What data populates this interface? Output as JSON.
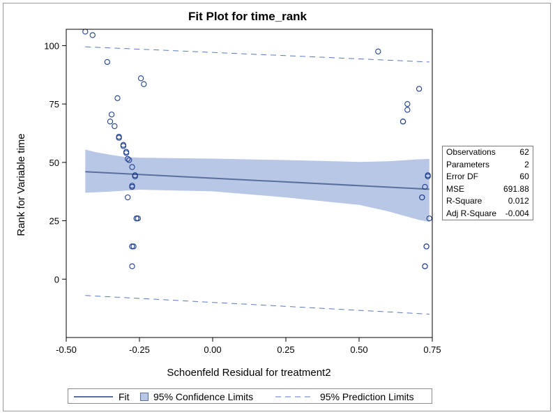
{
  "chart_data": {
    "type": "scatter",
    "title": "Fit Plot for time_rank",
    "xlabel": "Schoenfeld Residual for treatment2",
    "ylabel": "Rank for Variable time",
    "xlim": [
      -0.5,
      0.75
    ],
    "ylim": [
      -25,
      107
    ],
    "xticks": [
      -0.5,
      -0.25,
      0,
      0.25,
      0.5,
      0.75
    ],
    "xtick_labels": [
      "-0.50",
      "-0.25",
      "0.00",
      "0.25",
      "0.50",
      "0.75"
    ],
    "yticks": [
      0,
      25,
      50,
      75,
      100
    ],
    "ytick_labels": [
      "0",
      "25",
      "50",
      "75",
      "100"
    ],
    "grid": false,
    "legend_position": "bottom",
    "fit": {
      "x": [
        -0.435,
        0.74
      ],
      "y": [
        46.0,
        38.5
      ]
    },
    "confidence_band": {
      "x": [
        -0.435,
        -0.4,
        -0.35,
        -0.3,
        -0.25,
        0.0,
        0.25,
        0.5,
        0.6,
        0.7,
        0.74
      ],
      "lower": [
        37.0,
        37.2,
        37.5,
        37.9,
        38.3,
        37.6,
        35.0,
        31.8,
        29.0,
        25.5,
        24.5
      ],
      "upper": [
        55.5,
        54.4,
        53.3,
        52.3,
        52.0,
        51.6,
        51.0,
        50.2,
        50.5,
        51.3,
        51.5
      ]
    },
    "prediction_band": {
      "x": [
        -0.435,
        0.74
      ],
      "lower": [
        -7.0,
        -15.0
      ],
      "upper": [
        99.5,
        93.0
      ]
    },
    "points": [
      [
        -0.435,
        106.0
      ],
      [
        -0.41,
        104.5
      ],
      [
        -0.36,
        93.0
      ],
      [
        -0.245,
        86.0
      ],
      [
        -0.235,
        83.5
      ],
      [
        -0.325,
        77.5
      ],
      [
        -0.345,
        70.5
      ],
      [
        -0.35,
        67.5
      ],
      [
        -0.335,
        65.5
      ],
      [
        -0.32,
        61.0
      ],
      [
        -0.32,
        60.5
      ],
      [
        -0.305,
        57.5
      ],
      [
        -0.305,
        57.0
      ],
      [
        -0.295,
        54.5
      ],
      [
        -0.295,
        54.0
      ],
      [
        -0.29,
        51.5
      ],
      [
        -0.285,
        51.0
      ],
      [
        -0.275,
        48.0
      ],
      [
        -0.265,
        44.5
      ],
      [
        -0.265,
        44.0
      ],
      [
        -0.275,
        40.0
      ],
      [
        -0.275,
        39.5
      ],
      [
        -0.29,
        35.0
      ],
      [
        -0.26,
        26.0
      ],
      [
        -0.26,
        26.0
      ],
      [
        -0.255,
        26.0
      ],
      [
        -0.275,
        14.0
      ],
      [
        -0.275,
        14.0
      ],
      [
        -0.27,
        14.0
      ],
      [
        -0.275,
        5.5
      ],
      [
        0.565,
        97.5
      ],
      [
        0.705,
        81.5
      ],
      [
        0.665,
        75.0
      ],
      [
        0.665,
        72.5
      ],
      [
        0.65,
        67.5
      ],
      [
        0.65,
        67.5
      ],
      [
        0.735,
        44.5
      ],
      [
        0.735,
        44.0
      ],
      [
        0.725,
        39.5
      ],
      [
        0.715,
        35.0
      ],
      [
        0.715,
        35.0
      ],
      [
        0.74,
        26.0
      ],
      [
        0.73,
        14.0
      ],
      [
        0.73,
        14.0
      ],
      [
        0.725,
        5.5
      ],
      [
        0.725,
        5.5
      ]
    ],
    "colors": {
      "points": "#1f3f8f",
      "fit_line": "#5a6f9c",
      "confidence": "#b8c7e6",
      "prediction": "#5b78c2"
    }
  },
  "stats": [
    {
      "label": "Observations",
      "value": "62"
    },
    {
      "label": "Parameters",
      "value": "2"
    },
    {
      "label": "Error DF",
      "value": "60"
    },
    {
      "label": "MSE",
      "value": "691.88"
    },
    {
      "label": "R-Square",
      "value": "0.012"
    },
    {
      "label": "Adj R-Square",
      "value": "-0.004"
    }
  ],
  "legend": {
    "fit_label": "Fit",
    "confidence_label": "95% Confidence Limits",
    "prediction_label": "95% Prediction Limits"
  }
}
